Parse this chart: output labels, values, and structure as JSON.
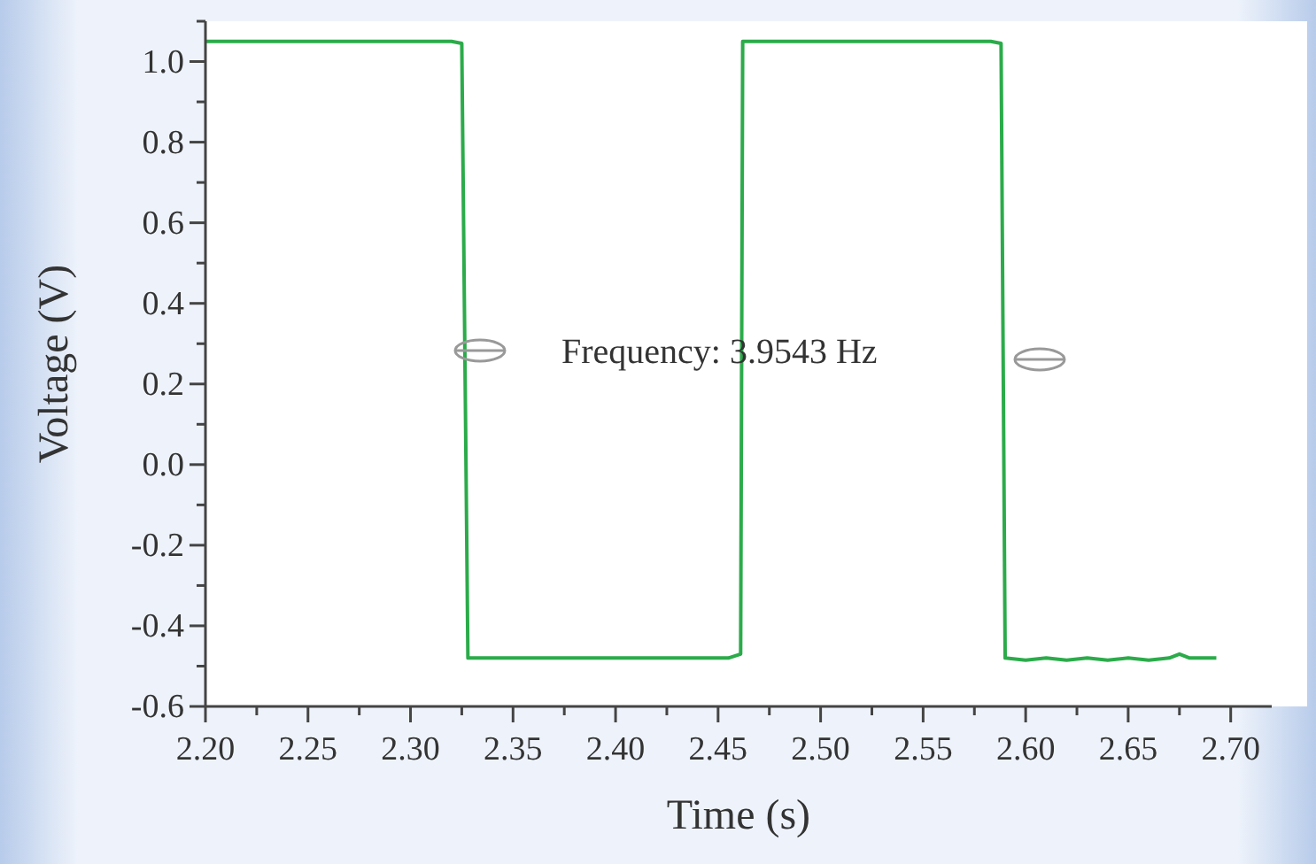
{
  "chart_data": {
    "type": "line",
    "xlabel": "Time (s)",
    "ylabel": "Voltage (V)",
    "annotations": [
      "Frequency: 3.9543 Hz"
    ],
    "xlim": [
      2.2,
      2.72
    ],
    "ylim": [
      -0.6,
      1.1
    ],
    "xticks": [
      {
        "value": 2.2,
        "label": "2.20"
      },
      {
        "value": 2.225,
        "label": null
      },
      {
        "value": 2.25,
        "label": "2.25"
      },
      {
        "value": 2.275,
        "label": null
      },
      {
        "value": 2.3,
        "label": "2.30"
      },
      {
        "value": 2.325,
        "label": null
      },
      {
        "value": 2.35,
        "label": "2.35"
      },
      {
        "value": 2.375,
        "label": null
      },
      {
        "value": 2.4,
        "label": "2.40"
      },
      {
        "value": 2.425,
        "label": null
      },
      {
        "value": 2.45,
        "label": "2.45"
      },
      {
        "value": 2.475,
        "label": null
      },
      {
        "value": 2.5,
        "label": "2.50"
      },
      {
        "value": 2.525,
        "label": null
      },
      {
        "value": 2.55,
        "label": "2.55"
      },
      {
        "value": 2.575,
        "label": null
      },
      {
        "value": 2.6,
        "label": "2.60"
      },
      {
        "value": 2.625,
        "label": null
      },
      {
        "value": 2.65,
        "label": "2.65"
      },
      {
        "value": 2.675,
        "label": null
      },
      {
        "value": 2.7,
        "label": "2.70"
      }
    ],
    "yticks": [
      {
        "value": -0.6,
        "label": "-0.6"
      },
      {
        "value": -0.5,
        "label": null
      },
      {
        "value": -0.4,
        "label": "-0.4"
      },
      {
        "value": -0.3,
        "label": null
      },
      {
        "value": -0.2,
        "label": "-0.2"
      },
      {
        "value": -0.1,
        "label": null
      },
      {
        "value": 0,
        "label": "0.0"
      },
      {
        "value": 0.1,
        "label": null
      },
      {
        "value": 0.2,
        "label": "0.2"
      },
      {
        "value": 0.3,
        "label": null
      },
      {
        "value": 0.4,
        "label": "0.4"
      },
      {
        "value": 0.5,
        "label": null
      },
      {
        "value": 0.6,
        "label": "0.6"
      },
      {
        "value": 0.7,
        "label": null
      },
      {
        "value": 0.8,
        "label": "0.8"
      },
      {
        "value": 0.9,
        "label": null
      },
      {
        "value": 1.0,
        "label": "1.0"
      },
      {
        "value": 1.1,
        "label": null
      }
    ],
    "grid": false,
    "marker": "none",
    "line_style": "solid",
    "series": [
      {
        "color": "#2bab4a",
        "x": [
          2.2,
          2.32,
          2.325,
          2.328,
          2.4,
          2.455,
          2.461,
          2.462,
          2.52,
          2.583,
          2.588,
          2.59,
          2.6,
          2.61,
          2.62,
          2.63,
          2.64,
          2.65,
          2.66,
          2.67,
          2.675,
          2.68,
          2.693
        ],
        "values": [
          1.05,
          1.05,
          1.045,
          -0.48,
          -0.48,
          -0.48,
          -0.47,
          1.05,
          1.05,
          1.05,
          1.045,
          -0.48,
          -0.485,
          -0.48,
          -0.485,
          -0.48,
          -0.485,
          -0.48,
          -0.485,
          -0.48,
          -0.47,
          -0.48,
          -0.48
        ]
      }
    ]
  }
}
